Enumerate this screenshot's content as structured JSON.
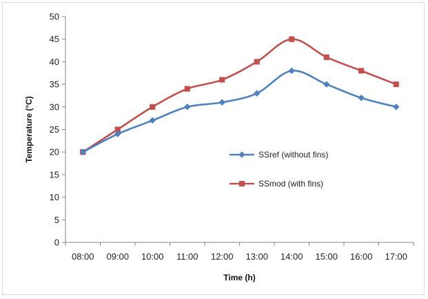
{
  "chart_data": {
    "type": "line",
    "title": "",
    "xlabel": "Time (h)",
    "ylabel": "Temperature (°C)",
    "categories": [
      "08:00",
      "09:00",
      "10:00",
      "11:00",
      "12:00",
      "13:00",
      "14:00",
      "15:00",
      "16:00",
      "17:00"
    ],
    "ylim": [
      0,
      50
    ],
    "yticks": [
      0,
      5,
      10,
      15,
      20,
      25,
      30,
      35,
      40,
      45,
      50
    ],
    "grid": false,
    "legend_position": "center-right",
    "series": [
      {
        "name": "SSref (without fins)",
        "color": "#4f81bd",
        "marker": "diamond",
        "values": [
          20,
          24,
          27,
          30,
          31,
          33,
          38,
          35,
          32,
          30
        ]
      },
      {
        "name": "SSmod (with fins)",
        "color": "#c0504d",
        "marker": "square",
        "values": [
          20,
          25,
          30,
          34,
          36,
          40,
          45,
          41,
          38,
          35
        ]
      }
    ]
  }
}
